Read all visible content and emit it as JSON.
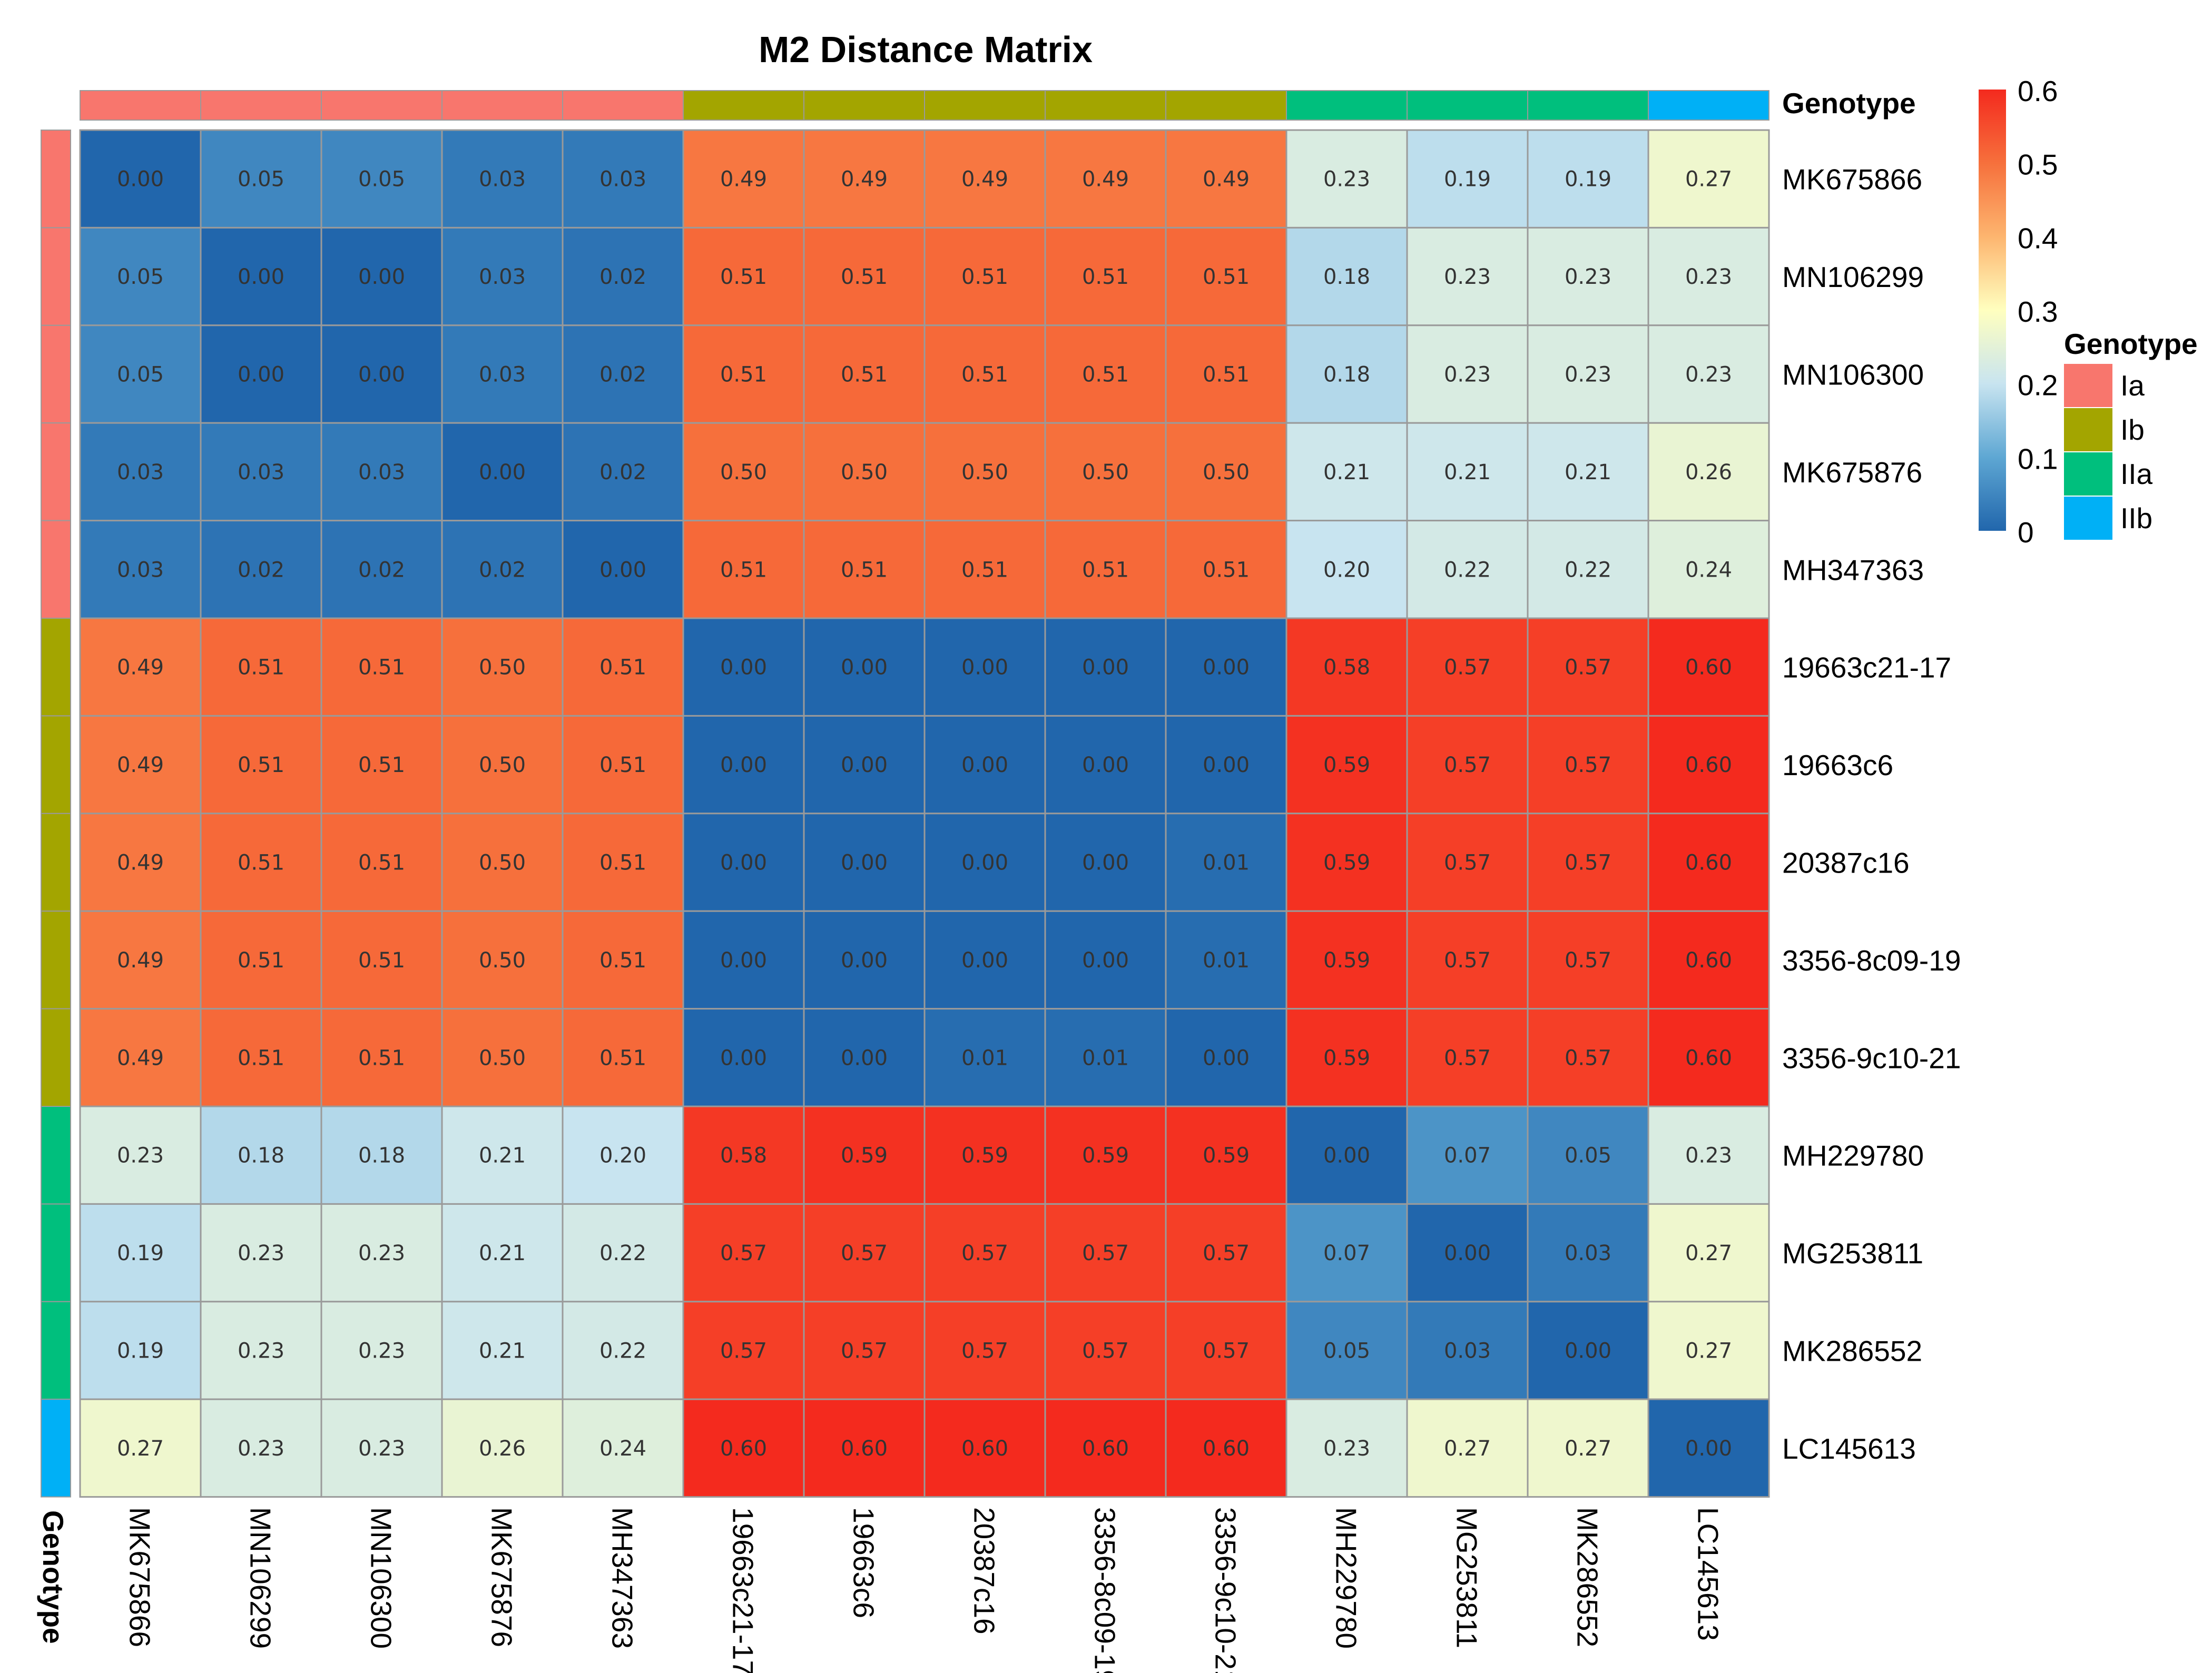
{
  "chart_data": {
    "type": "heatmap",
    "title": "M2 Distance Matrix",
    "labels": [
      "MK675866",
      "MN106299",
      "MN106300",
      "MK675876",
      "MH347363",
      "19663c21-17",
      "19663c6",
      "20387c16",
      "3356-8c09-19",
      "3356-9c10-21",
      "MH229780",
      "MG253811",
      "MK286552",
      "LC145613"
    ],
    "genotype": [
      "Ia",
      "Ia",
      "Ia",
      "Ia",
      "Ia",
      "Ib",
      "Ib",
      "Ib",
      "Ib",
      "Ib",
      "IIa",
      "IIa",
      "IIa",
      "IIb"
    ],
    "matrix": [
      [
        0.0,
        0.05,
        0.05,
        0.03,
        0.03,
        0.49,
        0.49,
        0.49,
        0.49,
        0.49,
        0.23,
        0.19,
        0.19,
        0.27
      ],
      [
        0.05,
        0.0,
        0.0,
        0.03,
        0.02,
        0.51,
        0.51,
        0.51,
        0.51,
        0.51,
        0.18,
        0.23,
        0.23,
        0.23
      ],
      [
        0.05,
        0.0,
        0.0,
        0.03,
        0.02,
        0.51,
        0.51,
        0.51,
        0.51,
        0.51,
        0.18,
        0.23,
        0.23,
        0.23
      ],
      [
        0.03,
        0.03,
        0.03,
        0.0,
        0.02,
        0.5,
        0.5,
        0.5,
        0.5,
        0.5,
        0.21,
        0.21,
        0.21,
        0.26
      ],
      [
        0.03,
        0.02,
        0.02,
        0.02,
        0.0,
        0.51,
        0.51,
        0.51,
        0.51,
        0.51,
        0.2,
        0.22,
        0.22,
        0.24
      ],
      [
        0.49,
        0.51,
        0.51,
        0.5,
        0.51,
        0.0,
        0.0,
        0.0,
        0.0,
        0.0,
        0.58,
        0.57,
        0.57,
        0.6
      ],
      [
        0.49,
        0.51,
        0.51,
        0.5,
        0.51,
        0.0,
        0.0,
        0.0,
        0.0,
        0.0,
        0.59,
        0.57,
        0.57,
        0.6
      ],
      [
        0.49,
        0.51,
        0.51,
        0.5,
        0.51,
        0.0,
        0.0,
        0.0,
        0.0,
        0.01,
        0.59,
        0.57,
        0.57,
        0.6
      ],
      [
        0.49,
        0.51,
        0.51,
        0.5,
        0.51,
        0.0,
        0.0,
        0.0,
        0.0,
        0.01,
        0.59,
        0.57,
        0.57,
        0.6
      ],
      [
        0.49,
        0.51,
        0.51,
        0.5,
        0.51,
        0.0,
        0.0,
        0.01,
        0.01,
        0.0,
        0.59,
        0.57,
        0.57,
        0.6
      ],
      [
        0.23,
        0.18,
        0.18,
        0.21,
        0.2,
        0.58,
        0.59,
        0.59,
        0.59,
        0.59,
        0.0,
        0.07,
        0.05,
        0.23
      ],
      [
        0.19,
        0.23,
        0.23,
        0.21,
        0.22,
        0.57,
        0.57,
        0.57,
        0.57,
        0.57,
        0.07,
        0.0,
        0.03,
        0.27
      ],
      [
        0.19,
        0.23,
        0.23,
        0.21,
        0.22,
        0.57,
        0.57,
        0.57,
        0.57,
        0.57,
        0.05,
        0.03,
        0.0,
        0.27
      ],
      [
        0.27,
        0.23,
        0.23,
        0.26,
        0.24,
        0.6,
        0.6,
        0.6,
        0.6,
        0.6,
        0.23,
        0.27,
        0.27,
        0.0
      ]
    ],
    "color_range": [
      0,
      0.6
    ],
    "colorbar_ticks": [
      "0",
      "0.1",
      "0.2",
      "0.3",
      "0.4",
      "0.5",
      "0.6"
    ],
    "annotation_title": "Genotype",
    "legend": {
      "title": "Genotype",
      "items": [
        {
          "name": "Ia",
          "color": "#F8766D"
        },
        {
          "name": "Ib",
          "color": "#A3A500"
        },
        {
          "name": "IIa",
          "color": "#00BF7D"
        },
        {
          "name": "IIb",
          "color": "#00B0F6"
        }
      ]
    }
  }
}
